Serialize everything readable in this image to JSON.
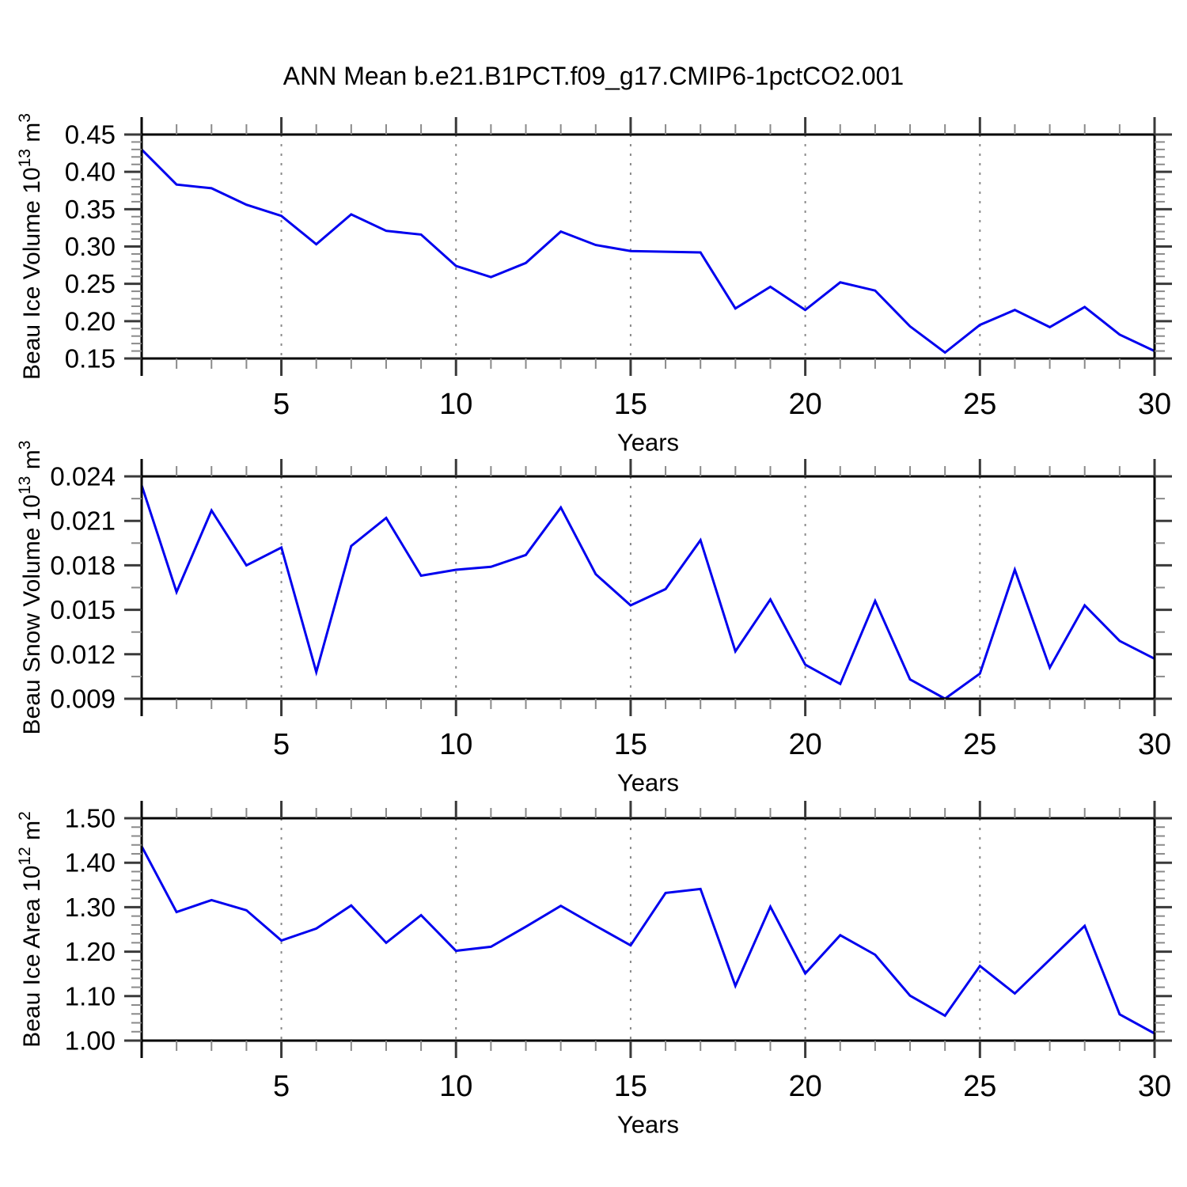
{
  "title": "ANN Mean b.e21.B1PCT.f09_g17.CMIP6-1pctCO2.001",
  "xlabel": "Years",
  "line_color": "#0000ee",
  "grid_color": "#8a8a8a",
  "frame_color": "#000000",
  "major_tick_color": "#3a3a3a",
  "minor_tick_color": "#8a8a8a",
  "xticks_major": [
    5,
    10,
    15,
    20,
    25,
    30
  ],
  "xtick_labels": [
    "5",
    "10",
    "15",
    "20",
    "25",
    "30"
  ],
  "gridline_years": [
    5,
    10,
    15,
    20,
    25
  ],
  "years": [
    1,
    2,
    3,
    4,
    5,
    6,
    7,
    8,
    9,
    10,
    11,
    12,
    13,
    14,
    15,
    16,
    17,
    18,
    19,
    20,
    21,
    22,
    23,
    24,
    25,
    26,
    27,
    28,
    29,
    30
  ],
  "chart_data": [
    {
      "type": "line",
      "name": "beau-ice-volume",
      "ylabel": {
        "pre": "Beau Ice Volume 10",
        "exp": "13",
        "unit": " m",
        "unit_exp": "3"
      },
      "ylim": [
        0.15,
        0.45
      ],
      "yticks": [
        0.15,
        0.2,
        0.25,
        0.3,
        0.35,
        0.4,
        0.45
      ],
      "ytick_labels": [
        "0.15",
        "0.20",
        "0.25",
        "0.30",
        "0.35",
        "0.40",
        "0.45"
      ],
      "minor_step": 0.01,
      "x": [
        1,
        2,
        3,
        4,
        5,
        6,
        7,
        8,
        9,
        10,
        11,
        12,
        13,
        14,
        15,
        16,
        17,
        18,
        19,
        20,
        21,
        22,
        23,
        24,
        25,
        26,
        27,
        28,
        29,
        30
      ],
      "values": [
        0.43,
        0.383,
        0.378,
        0.356,
        0.341,
        0.303,
        0.343,
        0.321,
        0.316,
        0.274,
        0.259,
        0.278,
        0.32,
        0.302,
        0.294,
        0.293,
        0.292,
        0.217,
        0.246,
        0.215,
        0.252,
        0.241,
        0.193,
        0.158,
        0.195,
        0.215,
        0.192,
        0.219,
        0.182,
        0.16
      ],
      "xlabel": "Years"
    },
    {
      "type": "line",
      "name": "beau-snow-volume",
      "ylabel": {
        "pre": "Beau Snow Volume 10",
        "exp": "13",
        "unit": " m",
        "unit_exp": "3"
      },
      "ylim": [
        0.009,
        0.024
      ],
      "yticks": [
        0.009,
        0.012,
        0.015,
        0.018,
        0.021,
        0.024
      ],
      "ytick_labels": [
        "0.009",
        "0.012",
        "0.015",
        "0.018",
        "0.021",
        "0.024"
      ],
      "minor_step": 0.0015,
      "x": [
        1,
        2,
        3,
        4,
        5,
        6,
        7,
        8,
        9,
        10,
        11,
        12,
        13,
        14,
        15,
        16,
        17,
        18,
        19,
        20,
        21,
        22,
        23,
        24,
        25,
        26,
        27,
        28,
        29,
        30
      ],
      "values": [
        0.0234,
        0.0162,
        0.0217,
        0.018,
        0.0192,
        0.0108,
        0.0193,
        0.0212,
        0.0173,
        0.0177,
        0.0179,
        0.0187,
        0.0219,
        0.0174,
        0.0153,
        0.0164,
        0.0197,
        0.0122,
        0.0157,
        0.0113,
        0.01,
        0.0156,
        0.0103,
        0.009,
        0.0107,
        0.0177,
        0.0111,
        0.0153,
        0.0129,
        0.0117
      ],
      "xlabel": "Years"
    },
    {
      "type": "line",
      "name": "beau-ice-area",
      "ylabel": {
        "pre": "Beau Ice Area 10",
        "exp": "12",
        "unit": " m",
        "unit_exp": "2"
      },
      "ylim": [
        1.0,
        1.5
      ],
      "yticks": [
        1.0,
        1.1,
        1.2,
        1.3,
        1.4,
        1.5
      ],
      "ytick_labels": [
        "1.00",
        "1.10",
        "1.20",
        "1.30",
        "1.40",
        "1.50"
      ],
      "minor_step": 0.02,
      "x": [
        1,
        2,
        3,
        4,
        5,
        6,
        7,
        8,
        9,
        10,
        11,
        12,
        13,
        14,
        15,
        16,
        17,
        18,
        19,
        20,
        21,
        22,
        23,
        24,
        25,
        26,
        27,
        28,
        29,
        30
      ],
      "values": [
        1.437,
        1.289,
        1.316,
        1.293,
        1.225,
        1.252,
        1.304,
        1.22,
        1.282,
        1.202,
        1.211,
        1.256,
        1.303,
        1.258,
        1.214,
        1.332,
        1.341,
        1.123,
        1.301,
        1.151,
        1.237,
        1.193,
        1.101,
        1.056,
        1.168,
        1.106,
        1.182,
        1.258,
        1.059,
        1.016
      ],
      "xlabel": "Years"
    }
  ]
}
